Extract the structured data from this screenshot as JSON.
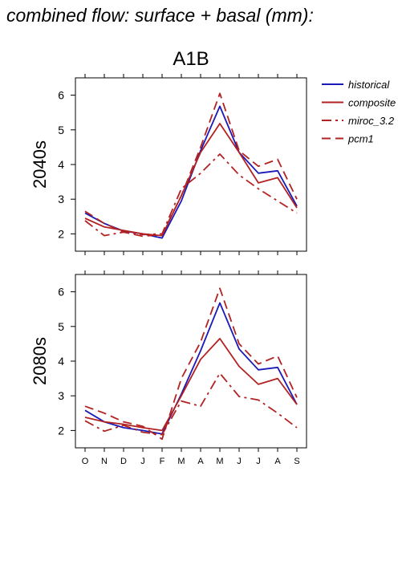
{
  "page_title": "combined flow: surface + basal (mm):",
  "chart_data": {
    "type": "line",
    "scenario_title": "A1B",
    "categories": [
      "O",
      "N",
      "D",
      "J",
      "F",
      "M",
      "A",
      "M",
      "J",
      "J",
      "A",
      "S"
    ],
    "ylim": [
      1.5,
      6.5
    ],
    "yticks": [
      "2",
      "3",
      "4",
      "5",
      "6"
    ],
    "grid": false,
    "legend_position": "right",
    "legend": [
      {
        "name": "historical",
        "color": "#1a1ab8",
        "dash": "solid"
      },
      {
        "name": "composite",
        "color": "#b22222",
        "dash": "solid"
      },
      {
        "name": "miroc_3.2",
        "color": "#b22222",
        "dash": "dashdot"
      },
      {
        "name": "pcm1",
        "color": "#b22222",
        "dash": "dashed"
      }
    ],
    "panels": [
      {
        "label": "2040s",
        "series": [
          {
            "name": "historical",
            "values": [
              2.6,
              2.3,
              2.08,
              2.0,
              1.88,
              2.95,
              4.4,
              5.68,
              4.35,
              3.75,
              3.82,
              2.8
            ]
          },
          {
            "name": "composite",
            "values": [
              2.45,
              2.2,
              2.1,
              2.0,
              1.95,
              3.1,
              4.35,
              5.18,
              4.35,
              3.47,
              3.62,
              2.75
            ]
          },
          {
            "name": "miroc_3.2",
            "values": [
              2.38,
              1.95,
              2.05,
              1.98,
              2.0,
              3.3,
              3.75,
              4.3,
              3.7,
              3.3,
              2.95,
              2.6
            ]
          },
          {
            "name": "pcm1",
            "values": [
              2.65,
              2.3,
              2.05,
              1.93,
              1.98,
              3.1,
              4.5,
              6.05,
              4.4,
              3.95,
              4.15,
              3.0
            ]
          }
        ]
      },
      {
        "label": "2080s",
        "series": [
          {
            "name": "historical",
            "values": [
              2.58,
              2.25,
              2.08,
              2.0,
              1.9,
              3.05,
              4.3,
              5.68,
              4.35,
              3.75,
              3.82,
              2.75
            ]
          },
          {
            "name": "composite",
            "values": [
              2.38,
              2.25,
              2.18,
              2.08,
              2.0,
              3.0,
              4.05,
              4.65,
              3.85,
              3.33,
              3.5,
              2.75
            ]
          },
          {
            "name": "miroc_3.2",
            "values": [
              2.28,
              1.98,
              2.15,
              1.95,
              1.88,
              2.85,
              2.7,
              3.65,
              2.98,
              2.88,
              2.5,
              2.08
            ]
          },
          {
            "name": "pcm1",
            "values": [
              2.7,
              2.5,
              2.25,
              2.12,
              1.75,
              3.5,
              4.55,
              6.1,
              4.5,
              3.92,
              4.15,
              2.95
            ]
          }
        ]
      }
    ]
  }
}
